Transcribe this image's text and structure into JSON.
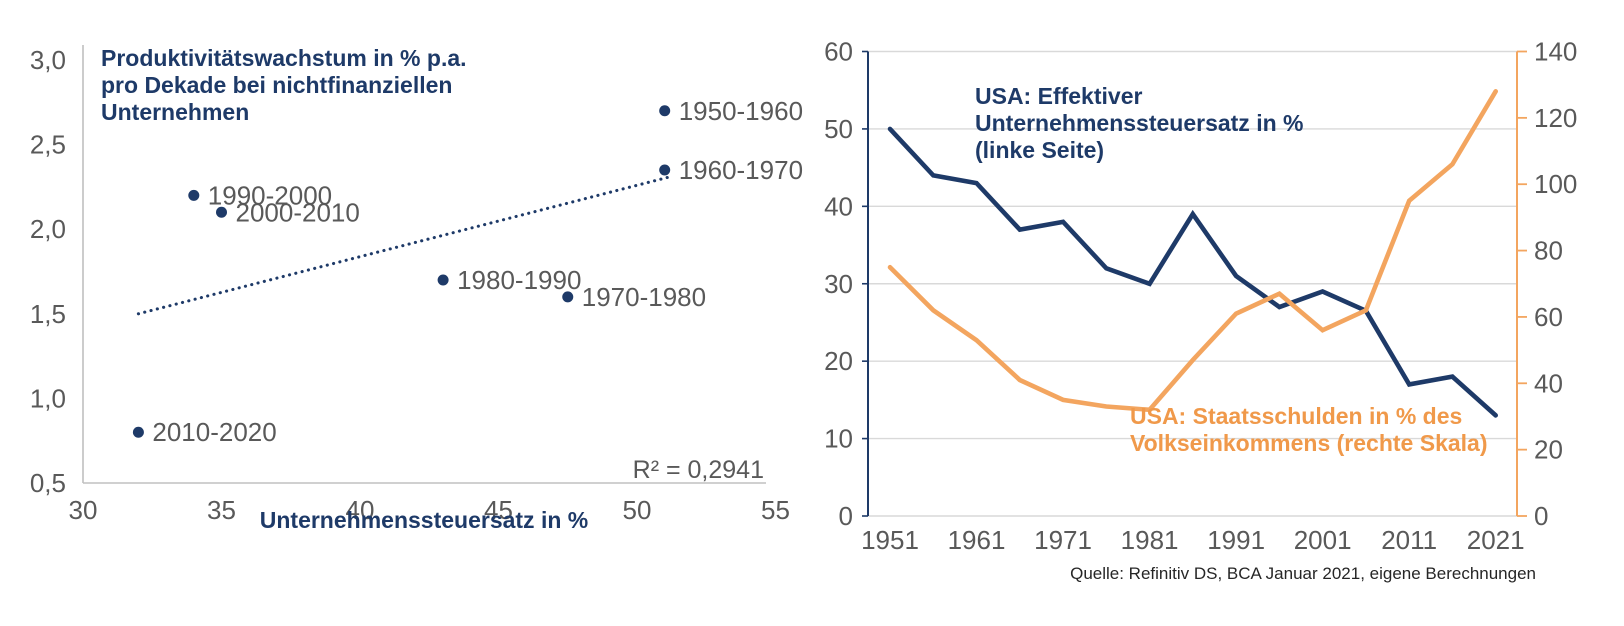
{
  "colors": {
    "navy": "#1e3a68",
    "orange": "#f3a55f",
    "orange_text": "#f0994a",
    "gray_label": "#595959",
    "gridline": "#d9d9d9",
    "axis_gray": "#c0c0c0",
    "source_text": "#262626",
    "background": "#ffffff"
  },
  "source_note": "Quelle: Refinitiv DS, BCA Januar 2021, eigene Berechnungen",
  "chart_data": [
    {
      "type": "scatter",
      "title": "Produktivitätswachstum in % p.a. pro Dekade bei nichtfinanziellen Unternehmen",
      "title_lines": [
        "Produktivitätswachstum in % p.a.",
        "pro Dekade bei nichtfinanziellen",
        "Unternehmen"
      ],
      "xlabel": "Unternehmenssteuersatz in %",
      "ylabel": "",
      "xlim": [
        30,
        55
      ],
      "ylim": [
        0.5,
        3.0
      ],
      "x_ticks": [
        30,
        35,
        40,
        45,
        50,
        55
      ],
      "x_tick_labels": [
        "30",
        "35",
        "40",
        "45",
        "50",
        "55"
      ],
      "y_ticks": [
        3.0,
        2.5,
        2.0,
        1.5,
        1.0,
        0.5
      ],
      "y_tick_labels": [
        "3,0",
        "2,5",
        "2,0",
        "1,5",
        "1,0",
        "0,5"
      ],
      "points": [
        {
          "label": "1950-1960",
          "x": 51,
          "y": 2.7
        },
        {
          "label": "1960-1970",
          "x": 51,
          "y": 2.35
        },
        {
          "label": "1990-2000",
          "x": 34,
          "y": 2.2
        },
        {
          "label": "2000-2010",
          "x": 35,
          "y": 2.1
        },
        {
          "label": "1980-1990",
          "x": 43,
          "y": 1.7
        },
        {
          "label": "1970-1980",
          "x": 47.5,
          "y": 1.6
        },
        {
          "label": "2010-2020",
          "x": 32,
          "y": 0.8
        }
      ],
      "trendline": {
        "x1": 32,
        "y1": 1.5,
        "x2": 51.2,
        "y2": 2.31,
        "style": "dotted"
      },
      "r2_label": "R² = 0,2941",
      "grid": false
    },
    {
      "type": "line",
      "x": [
        1951,
        1956,
        1961,
        1966,
        1971,
        1976,
        1981,
        1986,
        1991,
        1996,
        2001,
        2006,
        2011,
        2016,
        2021
      ],
      "x_tick_labels": [
        "1951",
        "1961",
        "1971",
        "1981",
        "1991",
        "2001",
        "2011",
        "2021"
      ],
      "series": [
        {
          "name": "USA: Effektiver Unternehmenssteuersatz in % (linke Seite)",
          "label_lines": [
            "USA: Effektiver",
            "Unternehmenssteuersatz in %",
            "(linke Seite)"
          ],
          "axis": "left",
          "color_key": "navy",
          "values": [
            50,
            44,
            43,
            37,
            38,
            32,
            30,
            39,
            31,
            27,
            29,
            26.5,
            17,
            18,
            13
          ]
        },
        {
          "name": "USA: Staatsschulden in % des Volkseinkommens (rechte Skala)",
          "label_lines": [
            "USA: Staatsschulden in % des",
            "Volkseinkommens (rechte Skala)"
          ],
          "axis": "right",
          "color_key": "orange",
          "values": [
            75,
            62,
            53,
            41,
            35,
            33,
            32,
            47,
            61,
            67,
            56,
            62,
            95,
            106,
            128
          ]
        }
      ],
      "left_axis": {
        "min": 0,
        "max": 60,
        "step": 10,
        "tick_labels": [
          "60",
          "50",
          "40",
          "30",
          "20",
          "10",
          "0"
        ]
      },
      "right_axis": {
        "min": 0,
        "max": 140,
        "step": 20,
        "tick_labels": [
          "140",
          "120",
          "100",
          "80",
          "60",
          "40",
          "20",
          "0"
        ]
      },
      "grid": true,
      "legend_position": "inline-annotations"
    }
  ]
}
